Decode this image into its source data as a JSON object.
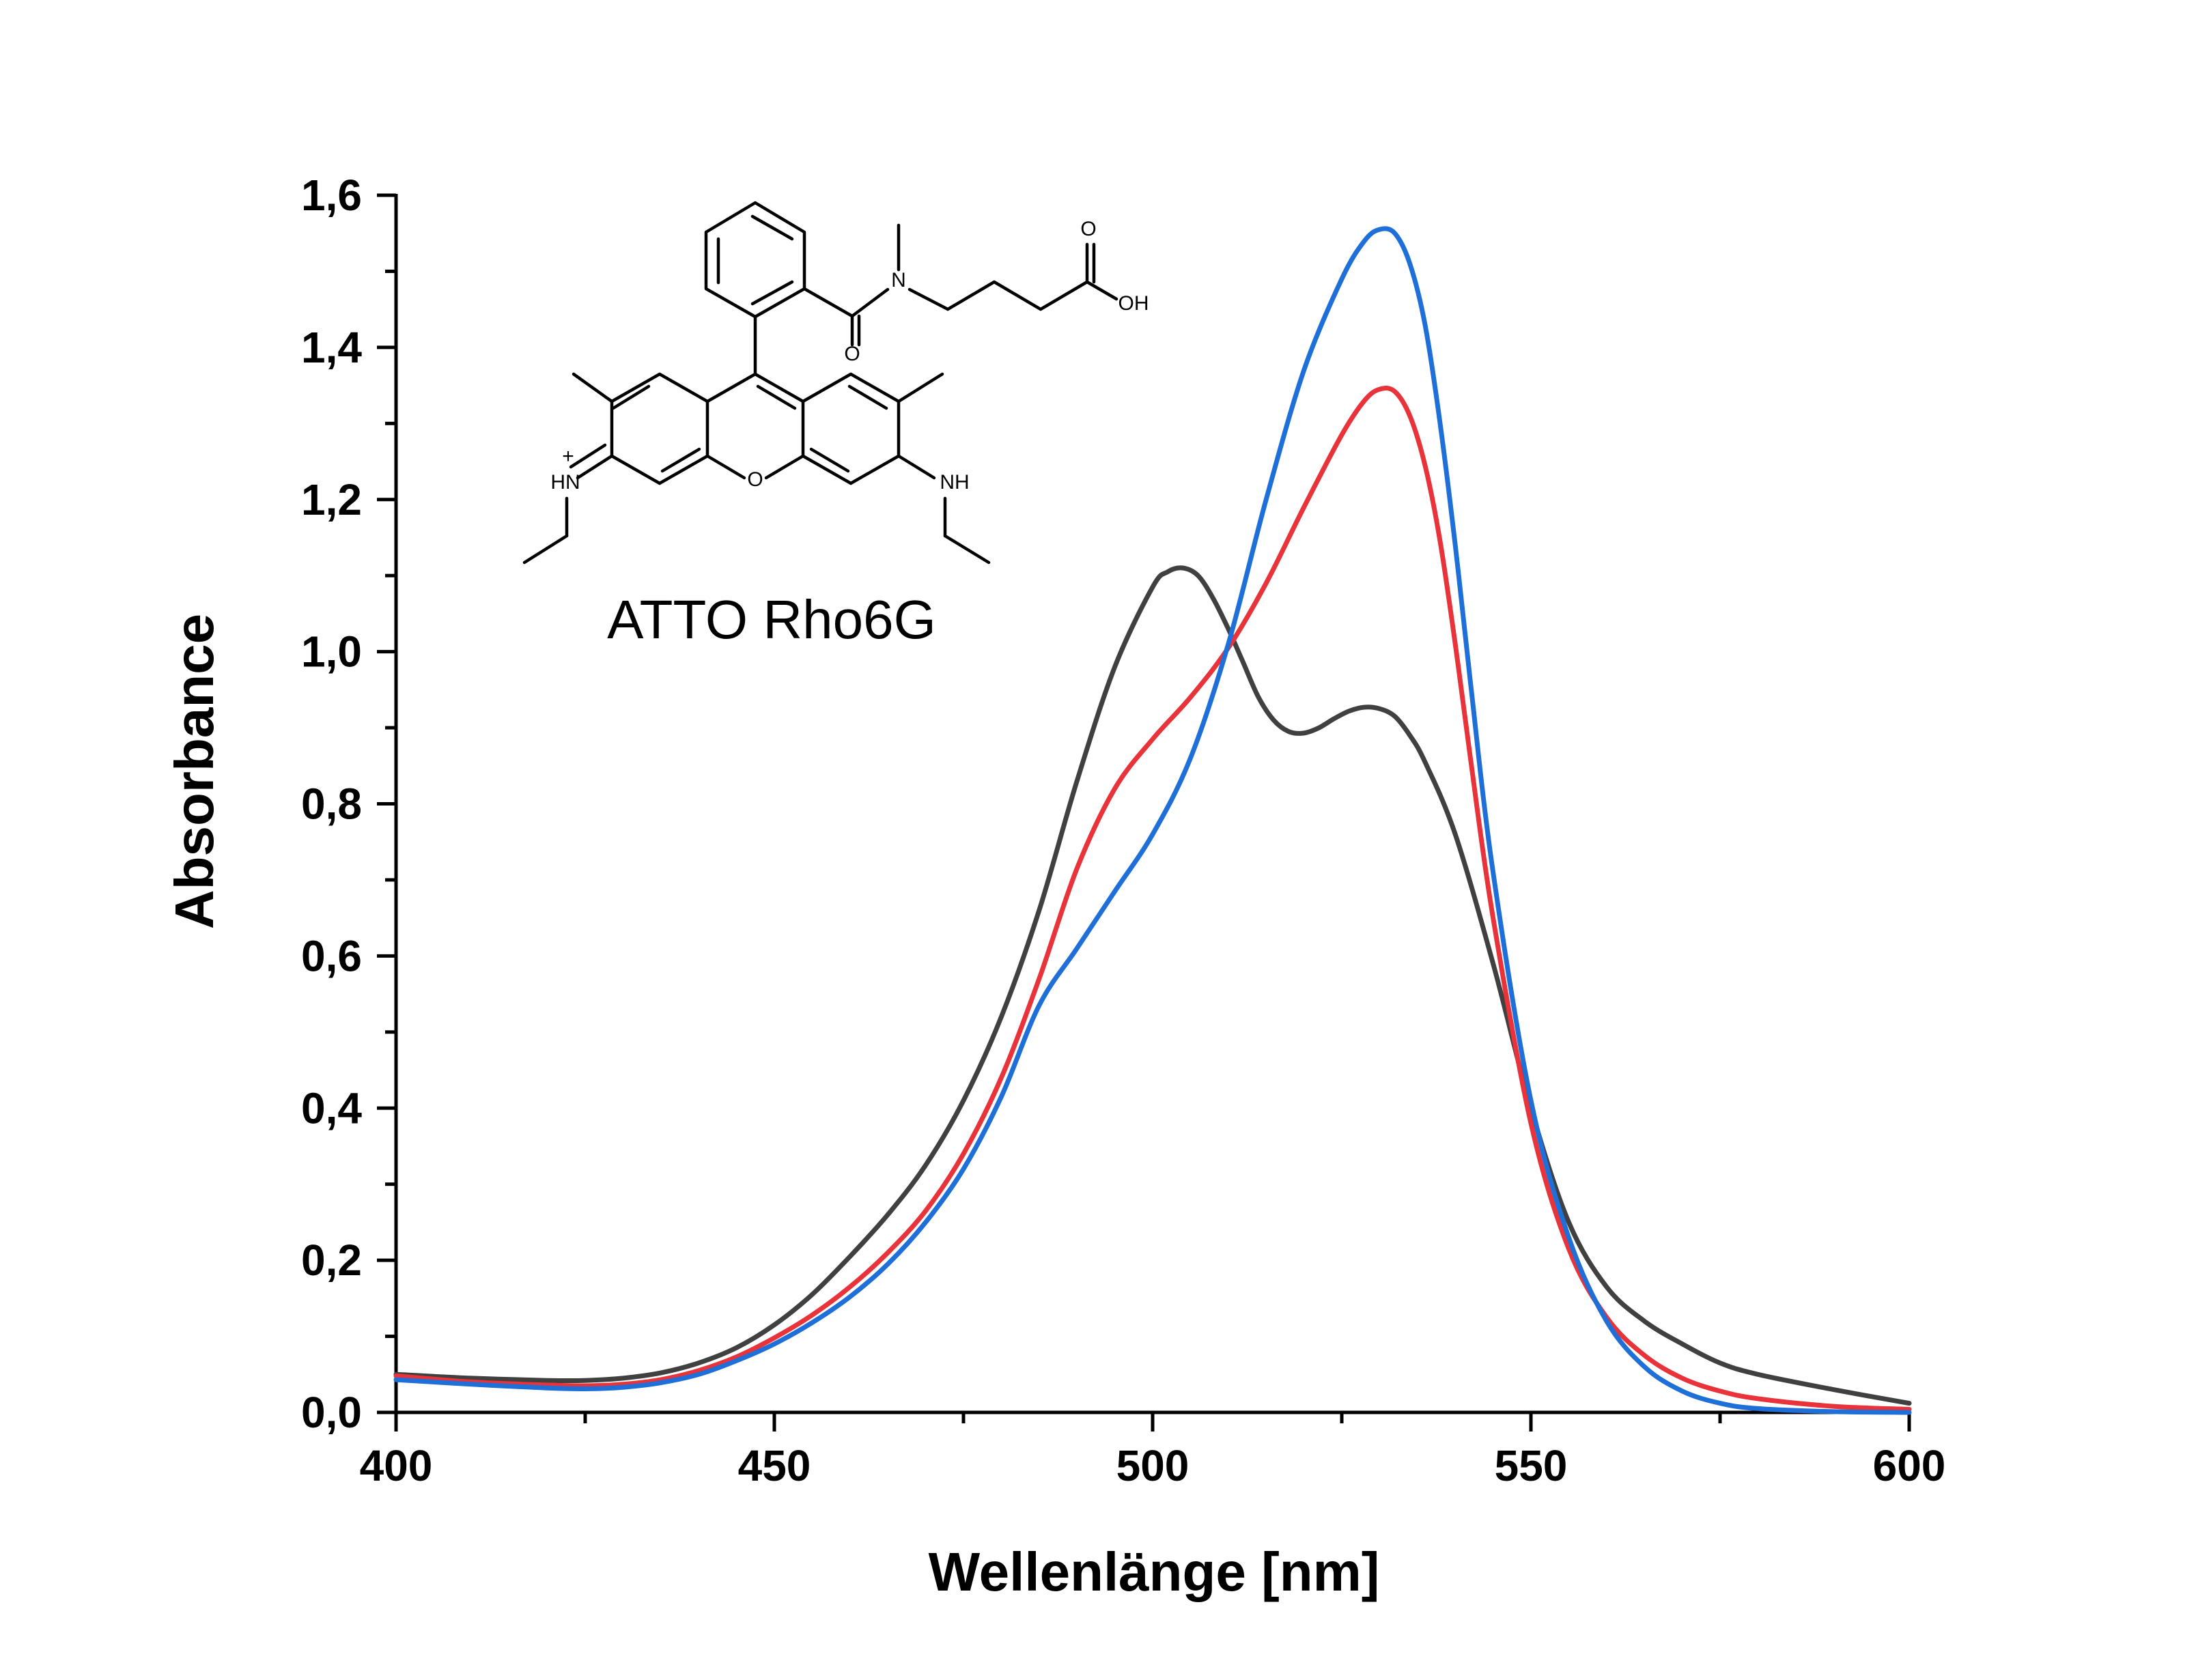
{
  "chart_data": {
    "type": "line",
    "xlabel": "Wellenlänge [nm]",
    "ylabel": "Absorbance",
    "xlim": [
      400,
      600
    ],
    "ylim": [
      0,
      1.6
    ],
    "x_ticks": [
      "400",
      "450",
      "500",
      "550",
      "600"
    ],
    "y_ticks": [
      "0,0",
      "0,2",
      "0,4",
      "0,6",
      "0,8",
      "1,0",
      "1,2",
      "1,4",
      "1,6"
    ],
    "grid": false,
    "legend": "none",
    "annotation": "ATTO Rho6G",
    "series": [
      {
        "color": "#404040",
        "x": [
          400,
          410,
          420,
          425,
          430,
          435,
          440,
          445,
          450,
          455,
          460,
          465,
          470,
          475,
          480,
          485,
          490,
          495,
          500,
          502,
          504,
          506,
          508,
          510,
          512,
          514,
          516,
          518,
          520,
          522,
          524,
          526,
          528,
          530,
          532,
          534,
          536,
          540,
          545,
          550,
          555,
          560,
          565,
          570,
          575,
          580,
          590,
          600
        ],
        "y": [
          0.05,
          0.045,
          0.042,
          0.042,
          0.045,
          0.052,
          0.065,
          0.085,
          0.115,
          0.155,
          0.205,
          0.26,
          0.325,
          0.41,
          0.52,
          0.66,
          0.83,
          0.98,
          1.085,
          1.105,
          1.11,
          1.1,
          1.07,
          1.03,
          0.985,
          0.94,
          0.91,
          0.895,
          0.893,
          0.9,
          0.912,
          0.922,
          0.927,
          0.925,
          0.915,
          0.89,
          0.855,
          0.76,
          0.59,
          0.4,
          0.25,
          0.165,
          0.12,
          0.09,
          0.065,
          0.05,
          0.03,
          0.012
        ]
      },
      {
        "color": "#e8333a",
        "x": [
          400,
          410,
          420,
          425,
          430,
          435,
          440,
          445,
          450,
          455,
          460,
          465,
          470,
          475,
          480,
          485,
          490,
          495,
          500,
          505,
          510,
          515,
          520,
          525,
          528,
          530,
          532,
          534,
          536,
          538,
          540,
          542,
          545,
          550,
          555,
          560,
          565,
          570,
          575,
          580,
          590,
          600
        ],
        "y": [
          0.048,
          0.04,
          0.036,
          0.035,
          0.037,
          0.043,
          0.055,
          0.073,
          0.098,
          0.128,
          0.165,
          0.21,
          0.265,
          0.34,
          0.44,
          0.57,
          0.715,
          0.82,
          0.885,
          0.94,
          1.005,
          1.09,
          1.19,
          1.285,
          1.33,
          1.345,
          1.342,
          1.31,
          1.245,
          1.145,
          1.01,
          0.86,
          0.65,
          0.38,
          0.215,
          0.125,
          0.075,
          0.045,
          0.028,
          0.018,
          0.008,
          0.004
        ]
      },
      {
        "color": "#1f6fd8",
        "x": [
          400,
          410,
          420,
          425,
          430,
          435,
          440,
          445,
          450,
          455,
          460,
          465,
          470,
          475,
          480,
          485,
          490,
          495,
          500,
          505,
          510,
          515,
          520,
          525,
          528,
          530,
          532,
          534,
          536,
          538,
          540,
          542,
          545,
          550,
          555,
          560,
          565,
          570,
          575,
          580,
          590,
          600
        ],
        "y": [
          0.043,
          0.037,
          0.032,
          0.031,
          0.033,
          0.039,
          0.05,
          0.068,
          0.09,
          0.118,
          0.152,
          0.195,
          0.25,
          0.32,
          0.415,
          0.535,
          0.61,
          0.685,
          0.76,
          0.86,
          1.01,
          1.2,
          1.37,
          1.49,
          1.54,
          1.555,
          1.55,
          1.51,
          1.43,
          1.3,
          1.14,
          0.96,
          0.71,
          0.41,
          0.23,
          0.12,
          0.06,
          0.028,
          0.012,
          0.005,
          0.001,
          0.0
        ]
      }
    ]
  }
}
